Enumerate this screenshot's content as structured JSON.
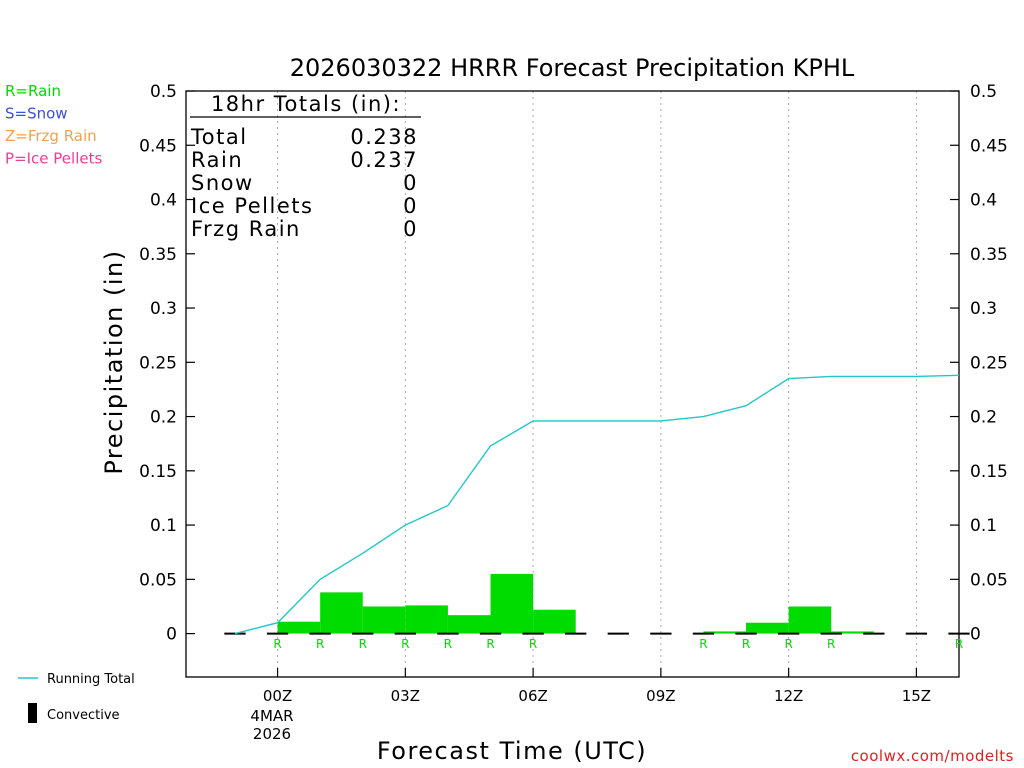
{
  "chart_data": {
    "type": "bar",
    "title": "2026030322 HRRR Forecast Precipitation KPHL",
    "xlabel": "Forecast Time (UTC)",
    "ylabel": "Precipitation (in)",
    "ylim": [
      -0.04,
      0.5
    ],
    "xlim": [
      -2.15,
      16.0
    ],
    "yticks": [
      0,
      0.05,
      0.1,
      0.15,
      0.2,
      0.25,
      0.3,
      0.35,
      0.4,
      0.45,
      0.5
    ],
    "ytick_labels": [
      "0",
      "0.05",
      "0.1",
      "0.15",
      "0.2",
      "0.25",
      "0.3",
      "0.35",
      "0.4",
      "0.45",
      "0.5"
    ],
    "xticks": [
      {
        "hour": 0,
        "label": "00Z"
      },
      {
        "hour": 3,
        "label": "03Z"
      },
      {
        "hour": 6,
        "label": "06Z"
      },
      {
        "hour": 9,
        "label": "09Z"
      },
      {
        "hour": 12,
        "label": "12Z"
      },
      {
        "hour": 15,
        "label": "15Z"
      }
    ],
    "date_label": {
      "day": "4MAR",
      "year": "2026"
    },
    "hourly_bars": {
      "name": "Rain",
      "color": "#00dc00",
      "hours": [
        0,
        1,
        2,
        3,
        4,
        5,
        6,
        7,
        8,
        9,
        10,
        11,
        12,
        13,
        14,
        15,
        16
      ],
      "values": [
        0.011,
        0.038,
        0.025,
        0.026,
        0.017,
        0.055,
        0.022,
        0,
        0,
        0,
        0.002,
        0.01,
        0.025,
        0.002,
        0,
        0,
        0.002
      ],
      "type_codes": [
        "R",
        "R",
        "R",
        "R",
        "R",
        "R",
        "R",
        "",
        "",
        "",
        "R",
        "R",
        "R",
        "R",
        "",
        "",
        "R"
      ]
    },
    "running_total": {
      "name": "Running Total",
      "color": "#20c8c8",
      "hours": [
        -1,
        0,
        1,
        2,
        3,
        4,
        5,
        6,
        7,
        8,
        9,
        10,
        11,
        12,
        13,
        14,
        15,
        16
      ],
      "values": [
        0,
        0.01,
        0.05,
        0.074,
        0.1,
        0.118,
        0.173,
        0.196,
        0.196,
        0.196,
        0.196,
        0.2,
        0.21,
        0.235,
        0.237,
        0.237,
        0.237,
        0.238
      ]
    },
    "totals_box": {
      "heading": "18hr Totals (in):",
      "rows": [
        {
          "label": "Total",
          "value": "0.238"
        },
        {
          "label": "Rain",
          "value": "0.237"
        },
        {
          "label": "Snow",
          "value": "0"
        },
        {
          "label": "Ice Pellets",
          "value": "0"
        },
        {
          "label": "Frzg Rain",
          "value": "0"
        }
      ]
    },
    "type_legend": [
      {
        "text": "R=Rain",
        "color": "#00dc00"
      },
      {
        "text": "S=Snow",
        "color": "#3c50dc"
      },
      {
        "text": "Z=Frzg Rain",
        "color": "#f0a050"
      },
      {
        "text": "P=Ice Pellets",
        "color": "#f03c96"
      }
    ],
    "line_legend": [
      {
        "text": "Running Total",
        "color": "#20c8c8"
      },
      {
        "text": "Convective",
        "color": "#000000"
      }
    ],
    "credit": "coolwx.com/modelts",
    "credit_color": "#e02020"
  }
}
